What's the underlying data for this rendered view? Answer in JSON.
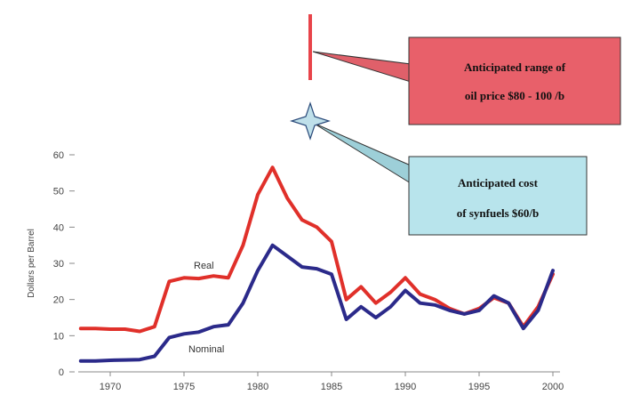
{
  "chart_data": {
    "type": "line",
    "title": "",
    "xlabel": "",
    "ylabel": "Dollars per Barrel",
    "xlim": [
      1968,
      2001
    ],
    "ylim": [
      0,
      60
    ],
    "x_ticks": [
      "1970",
      "1975",
      "1980",
      "1985",
      "1990",
      "1995",
      "2000"
    ],
    "y_ticks": [
      "0",
      "10",
      "20",
      "30",
      "40",
      "50",
      "60"
    ],
    "grid": false,
    "legend": "inline labels",
    "series": [
      {
        "name": "Real",
        "color": "#e0302a",
        "x": [
          1968,
          1969,
          1970,
          1971,
          1972,
          1973,
          1974,
          1975,
          1976,
          1977,
          1978,
          1979,
          1980,
          1981,
          1982,
          1983,
          1984,
          1985,
          1986,
          1987,
          1988,
          1989,
          1990,
          1991,
          1992,
          1993,
          1994,
          1995,
          1996,
          1997,
          1998,
          1999,
          2000
        ],
        "values": [
          12,
          12,
          11.8,
          11.8,
          11.2,
          12.5,
          25,
          26,
          25.8,
          26.5,
          26,
          35,
          49,
          56.5,
          48,
          42,
          40,
          36,
          20,
          23.5,
          19,
          22,
          26,
          21.5,
          20,
          17.5,
          16,
          17.5,
          20.5,
          19,
          12.5,
          18,
          27
        ]
      },
      {
        "name": "Nominal",
        "color": "#2b2a8a",
        "x": [
          1968,
          1969,
          1970,
          1971,
          1972,
          1973,
          1974,
          1975,
          1976,
          1977,
          1978,
          1979,
          1980,
          1981,
          1982,
          1983,
          1984,
          1985,
          1986,
          1987,
          1988,
          1989,
          1990,
          1991,
          1992,
          1993,
          1994,
          1995,
          1996,
          1997,
          1998,
          1999,
          2000
        ],
        "values": [
          3,
          3,
          3.2,
          3.3,
          3.4,
          4.3,
          9.5,
          10.5,
          11,
          12.5,
          13,
          19,
          28,
          35,
          32,
          29,
          28.5,
          27,
          14.5,
          18,
          15,
          18,
          22.5,
          19,
          18.5,
          17,
          16,
          17,
          21,
          19,
          12,
          17,
          28
        ]
      }
    ],
    "annotations": [
      {
        "kind": "range-bar",
        "x": 1983.4,
        "color": "#e8444a",
        "text_lines": [
          "Anticipated range of",
          "oil price $80 - 100 /b"
        ],
        "box_color": "#e8606a"
      },
      {
        "kind": "star",
        "x": 1983.4,
        "color": "#bfe0ea",
        "text_lines": [
          "Anticipated cost",
          "of synfuels $60/b"
        ],
        "box_color": "#b8e4ec"
      }
    ]
  }
}
